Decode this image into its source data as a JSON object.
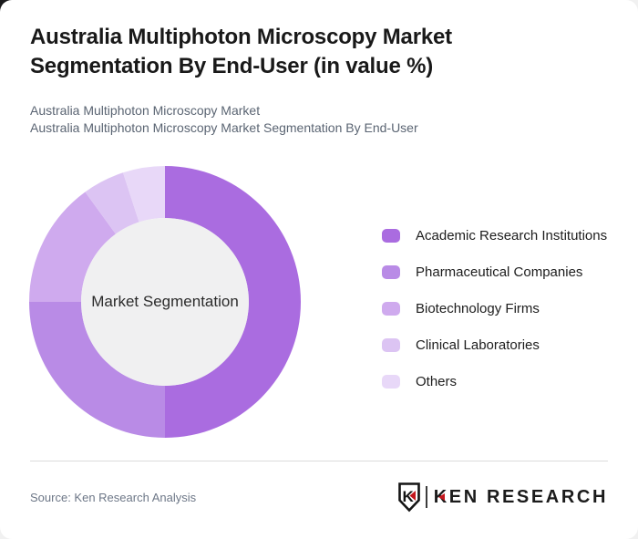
{
  "page": {
    "title": "Australia Multiphoton Microscopy Market Segmentation By End-User (in value %)",
    "subtitle_line1": "Australia Multiphoton Microscopy Market",
    "subtitle_line2": "Australia Multiphoton Microscopy Market Segmentation By End-User"
  },
  "chart_data": {
    "type": "pie",
    "variant": "donut",
    "title": "Australia Multiphoton Microscopy Market Segmentation By End-User (in value %)",
    "center_label": "Market Segmentation",
    "legend_position": "right",
    "start_angle_deg": 0,
    "direction": "clockwise",
    "hole_color": "#f0f0f1",
    "segments": [
      {
        "label": "Academic Research Institutions",
        "value_pct": 50,
        "color": "#aa6ce0"
      },
      {
        "label": "Pharmaceutical Companies",
        "value_pct": 25,
        "color": "#b98be6"
      },
      {
        "label": "Biotechnology Firms",
        "value_pct": 15,
        "color": "#cfaaee"
      },
      {
        "label": "Clinical Laboratories",
        "value_pct": 5,
        "color": "#dcc4f3"
      },
      {
        "label": "Others",
        "value_pct": 5,
        "color": "#e8d8f8"
      }
    ]
  },
  "footer": {
    "source": "Source: Ken Research Analysis",
    "logo_text": "KEN RESEARCH",
    "logo_monogram": "K",
    "logo_accent_color": "#c4161c"
  }
}
